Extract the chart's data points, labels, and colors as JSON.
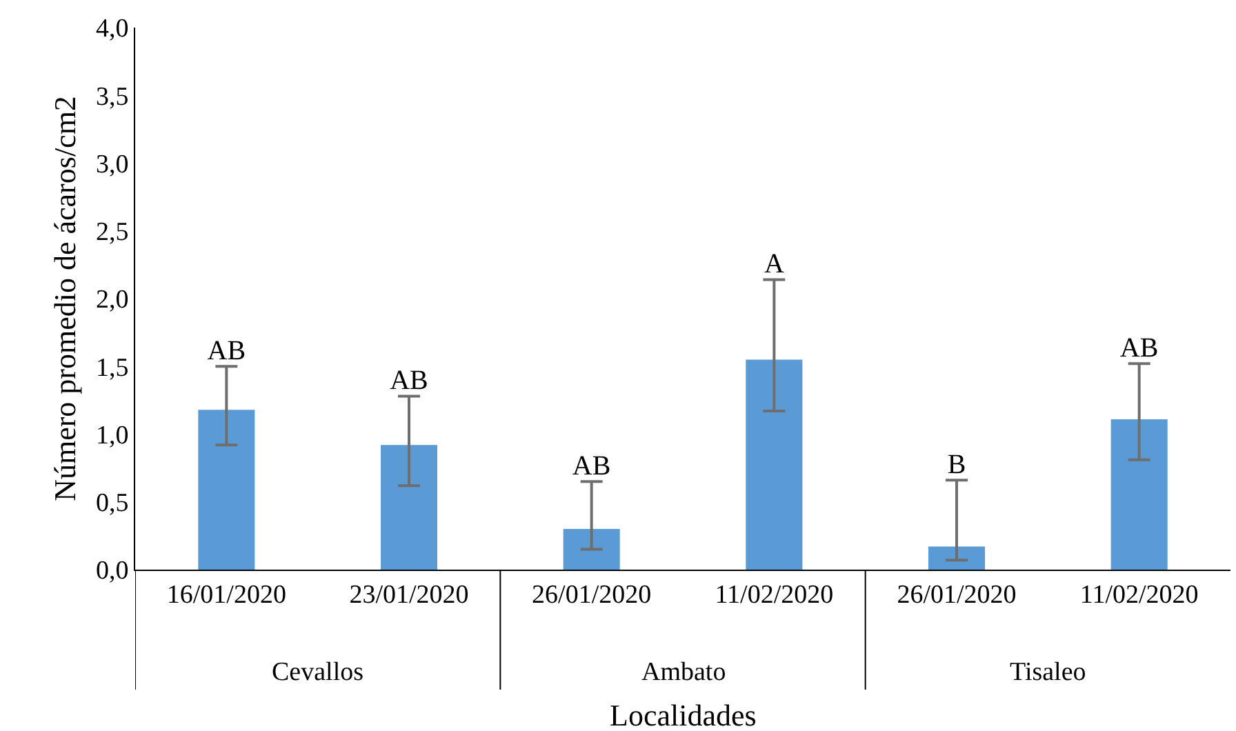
{
  "chart_data": {
    "type": "bar",
    "ylabel": "Número promedio de ácaros/cm2",
    "xlabel": "Localidades",
    "categories": [
      "16/01/2020",
      "23/01/2020",
      "26/01/2020",
      "11/02/2020",
      "26/01/2020",
      "11/02/2020"
    ],
    "values": [
      1.18,
      0.92,
      0.3,
      1.55,
      0.17,
      1.11
    ],
    "errors": [
      [
        0.92,
        1.5
      ],
      [
        0.62,
        1.28
      ],
      [
        0.15,
        0.65
      ],
      [
        1.17,
        2.14
      ],
      [
        0.07,
        0.66
      ],
      [
        0.81,
        1.52
      ]
    ],
    "value_labels": [
      "AB",
      "AB",
      "AB",
      "A",
      "B",
      "AB"
    ],
    "color": "#5b9bd5",
    "ylim": [
      0,
      4.0
    ],
    "yticks": [
      {
        "value": 0,
        "label": "0,0"
      },
      {
        "value": 0.5,
        "label": "0,5"
      },
      {
        "value": 1.0,
        "label": "1,0"
      },
      {
        "value": 1.5,
        "label": "1,5"
      },
      {
        "value": 2.0,
        "label": "2,0"
      },
      {
        "value": 2.5,
        "label": "2,5"
      },
      {
        "value": 3.0,
        "label": "3,0"
      },
      {
        "value": 3.5,
        "label": "3,5"
      },
      {
        "value": 4.0,
        "label": "4,0"
      }
    ],
    "annotations": [
      "Cevallos",
      "Ambato",
      "Tisaleo"
    ]
  }
}
